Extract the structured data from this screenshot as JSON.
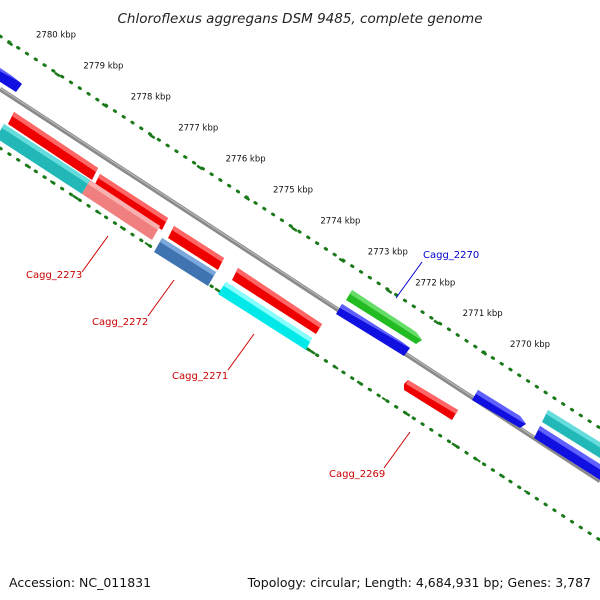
{
  "title": "Chloroflexus aggregans DSM 9485, complete genome",
  "footer": {
    "accession": "Accession: NC_011831",
    "summary": "Topology: circular; Length: 4,684,931 bp; Genes: 3,787"
  },
  "colors": {
    "backbone": "#8a8a8a",
    "scale_dots": "#1a7a1a",
    "label_red": "#cc0000",
    "label_blue": "#0000cc"
  },
  "scale_labels": [
    "2780 kbp",
    "2779 kbp",
    "2778 kbp",
    "2777 kbp",
    "2776 kbp",
    "2775 kbp",
    "2774 kbp",
    "2773 kbp",
    "2772 kbp",
    "2771 kbp",
    "2770 kbp"
  ],
  "gene_labels": [
    {
      "name": "Cagg_2273",
      "color": "#cc0000"
    },
    {
      "name": "Cagg_2272",
      "color": "#cc0000"
    },
    {
      "name": "Cagg_2271",
      "color": "#cc0000"
    },
    {
      "name": "Cagg_2270",
      "color": "#0000cc"
    },
    {
      "name": "Cagg_2269",
      "color": "#cc0000"
    }
  ]
}
